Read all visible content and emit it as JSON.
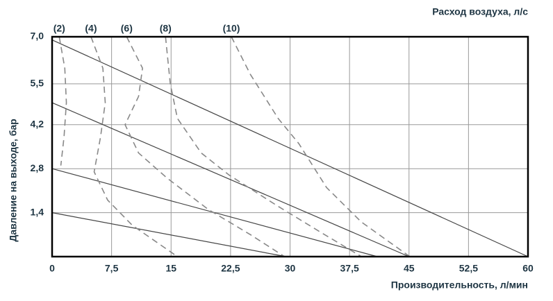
{
  "chart_data": {
    "type": "line",
    "title": "Расход воздуха, л/с",
    "x_label": "Производительность, л/мин",
    "y_label": "Давление на выходе, бар",
    "xlim": [
      0,
      60
    ],
    "ylim": [
      0,
      7
    ],
    "xticks": [
      0,
      {
        "value": 7.5,
        "label": "7,5"
      },
      15,
      {
        "value": 22.5,
        "label": "22,5"
      },
      30,
      {
        "value": 37.5,
        "label": "37,5"
      },
      45,
      {
        "value": 52.5,
        "label": "52,5"
      },
      60
    ],
    "yticks": [
      {
        "value": 1.4,
        "label": "1,4"
      },
      {
        "value": 2.8,
        "label": "2,8"
      },
      {
        "value": 4.2,
        "label": "4,2"
      },
      {
        "value": 5.5,
        "label": "5,5"
      },
      {
        "value": 7,
        "label": "7,0"
      }
    ],
    "grid": true,
    "series": [
      {
        "color": "#444444",
        "linestyle": "solid",
        "x": [
          0,
          60
        ],
        "values": [
          6.9,
          0
        ]
      },
      {
        "color": "#444444",
        "linestyle": "solid",
        "x": [
          0,
          45
        ],
        "values": [
          4.9,
          0
        ]
      },
      {
        "color": "#444444",
        "linestyle": "solid",
        "x": [
          0,
          41
        ],
        "values": [
          2.8,
          0
        ]
      },
      {
        "color": "#444444",
        "linestyle": "solid",
        "x": [
          0,
          29.5
        ],
        "values": [
          1.4,
          0
        ]
      },
      {
        "name": "(2)",
        "color": "#888888",
        "linestyle": "dashed",
        "x": [
          0.9,
          1.6,
          1.8,
          1.5,
          1.1
        ],
        "values": [
          7,
          6,
          4.9,
          3.8,
          2.9
        ]
      },
      {
        "name": "(4)",
        "color": "#888888",
        "linestyle": "dashed",
        "x": [
          4.9,
          6.4,
          6.7,
          6.1,
          5.3,
          7,
          10.1,
          15.8
        ],
        "values": [
          7,
          6,
          4.9,
          3.8,
          2.7,
          1.8,
          1,
          0
        ]
      },
      {
        "name": "(6)",
        "color": "#888888",
        "linestyle": "dashed",
        "x": [
          9.4,
          11.4,
          10.9,
          9.2,
          10.9,
          14.5,
          19.7,
          25,
          29.3
        ],
        "values": [
          7,
          6,
          5.1,
          4.2,
          3.3,
          2.5,
          1.5,
          0.7,
          0
        ]
      },
      {
        "name": "(8)",
        "color": "#888888",
        "linestyle": "dashed",
        "x": [
          14.3,
          14.9,
          15.8,
          18.8,
          22.3,
          28.5,
          33.7,
          39
        ],
        "values": [
          7,
          5.5,
          4.4,
          3.3,
          2.6,
          1.6,
          0.8,
          0
        ]
      },
      {
        "name": "(10)",
        "color": "#888888",
        "linestyle": "dashed",
        "x": [
          22.6,
          25,
          28.5,
          31.1,
          34.6,
          39,
          45.1
        ],
        "values": [
          7,
          5.8,
          4.4,
          3.6,
          2.2,
          1.1,
          0
        ]
      }
    ]
  }
}
